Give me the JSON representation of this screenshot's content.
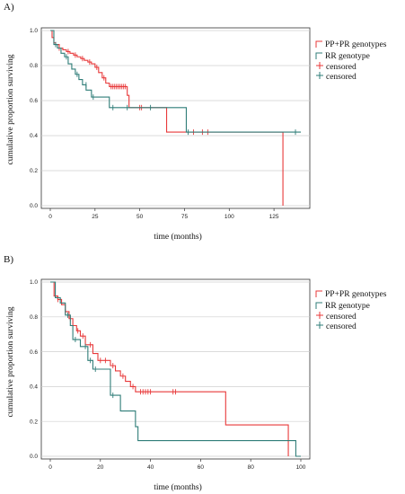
{
  "panels": [
    {
      "letter": "A)"
    },
    {
      "letter": "B)"
    }
  ],
  "chart_data": [
    {
      "type": "line",
      "subtype": "kaplan-meier",
      "xlabel": "time (months)",
      "ylabel": "cumulative proportion surviving",
      "xlim": [
        0,
        140
      ],
      "ylim": [
        0,
        1.0
      ],
      "xticks": [
        0,
        25,
        50,
        75,
        100,
        125
      ],
      "yticks": [
        0.0,
        0.2,
        0.4,
        0.6,
        0.8,
        1.0
      ],
      "grid": "horizontal",
      "legend_position": "top-right",
      "legend": [
        "PP+PR genotypes",
        "RR genotype",
        "censored",
        "censored"
      ],
      "series": [
        {
          "name": "PP+PR genotypes",
          "color": "#e8393a",
          "steps": [
            [
              0,
              1.0
            ],
            [
              1,
              0.96
            ],
            [
              2,
              0.93
            ],
            [
              3,
              0.92
            ],
            [
              5,
              0.9
            ],
            [
              7,
              0.89
            ],
            [
              9,
              0.88
            ],
            [
              11,
              0.87
            ],
            [
              13,
              0.86
            ],
            [
              15,
              0.85
            ],
            [
              17,
              0.84
            ],
            [
              19,
              0.83
            ],
            [
              21,
              0.82
            ],
            [
              23,
              0.81
            ],
            [
              25,
              0.79
            ],
            [
              27,
              0.76
            ],
            [
              29,
              0.73
            ],
            [
              31,
              0.7
            ],
            [
              33,
              0.68
            ],
            [
              43,
              0.63
            ],
            [
              44,
              0.56
            ],
            [
              65,
              0.42
            ],
            [
              130,
              0.0
            ]
          ],
          "end_x": 130,
          "censored": [
            [
              5,
              0.9
            ],
            [
              10,
              0.88
            ],
            [
              14,
              0.86
            ],
            [
              18,
              0.84
            ],
            [
              22,
              0.82
            ],
            [
              26,
              0.79
            ],
            [
              30,
              0.73
            ],
            [
              34,
              0.68
            ],
            [
              35,
              0.68
            ],
            [
              36,
              0.68
            ],
            [
              37,
              0.68
            ],
            [
              38,
              0.68
            ],
            [
              39,
              0.68
            ],
            [
              40,
              0.68
            ],
            [
              41,
              0.68
            ],
            [
              42,
              0.68
            ],
            [
              50,
              0.56
            ],
            [
              51,
              0.56
            ],
            [
              80,
              0.42
            ],
            [
              85,
              0.42
            ],
            [
              88,
              0.42
            ]
          ]
        },
        {
          "name": "RR genotype",
          "color": "#2f7d78",
          "steps": [
            [
              0,
              1.0
            ],
            [
              2,
              0.92
            ],
            [
              4,
              0.9
            ],
            [
              6,
              0.87
            ],
            [
              8,
              0.85
            ],
            [
              10,
              0.81
            ],
            [
              12,
              0.78
            ],
            [
              14,
              0.75
            ],
            [
              16,
              0.72
            ],
            [
              18,
              0.69
            ],
            [
              20,
              0.66
            ],
            [
              23,
              0.62
            ],
            [
              33,
              0.56
            ],
            [
              76,
              0.42
            ]
          ],
          "end_x": 140,
          "censored": [
            [
              3,
              0.92
            ],
            [
              9,
              0.85
            ],
            [
              15,
              0.75
            ],
            [
              20,
              0.69
            ],
            [
              24,
              0.62
            ],
            [
              35,
              0.56
            ],
            [
              43,
              0.56
            ],
            [
              56,
              0.56
            ],
            [
              77,
              0.42
            ],
            [
              137,
              0.42
            ]
          ]
        }
      ]
    },
    {
      "type": "line",
      "subtype": "kaplan-meier",
      "xlabel": "time (months)",
      "ylabel": "cumulative proportion surviving",
      "xlim": [
        0,
        100
      ],
      "ylim": [
        0,
        1.0
      ],
      "xticks": [
        0,
        20,
        40,
        60,
        80,
        100
      ],
      "yticks": [
        0.0,
        0.2,
        0.4,
        0.6,
        0.8,
        1.0
      ],
      "grid": "horizontal",
      "legend_position": "top-right",
      "legend": [
        "PP+PR genotypes",
        "RR genotype",
        "censored",
        "censored"
      ],
      "series": [
        {
          "name": "PP+PR genotypes",
          "color": "#e8393a",
          "steps": [
            [
              0,
              1.0
            ],
            [
              1.5,
              0.92
            ],
            [
              3,
              0.9
            ],
            [
              4.5,
              0.87
            ],
            [
              6,
              0.83
            ],
            [
              7.5,
              0.79
            ],
            [
              9,
              0.75
            ],
            [
              10.5,
              0.72
            ],
            [
              12,
              0.69
            ],
            [
              14,
              0.64
            ],
            [
              17,
              0.59
            ],
            [
              19,
              0.55
            ],
            [
              24,
              0.52
            ],
            [
              26,
              0.49
            ],
            [
              28,
              0.46
            ],
            [
              30,
              0.43
            ],
            [
              32,
              0.4
            ],
            [
              34,
              0.37
            ],
            [
              70,
              0.18
            ],
            [
              95,
              0.0
            ]
          ],
          "end_x": 95,
          "censored": [
            [
              3,
              0.9
            ],
            [
              6,
              0.83
            ],
            [
              8,
              0.79
            ],
            [
              11,
              0.72
            ],
            [
              13,
              0.69
            ],
            [
              16,
              0.64
            ],
            [
              20,
              0.55
            ],
            [
              22,
              0.55
            ],
            [
              25,
              0.52
            ],
            [
              29,
              0.46
            ],
            [
              33,
              0.4
            ],
            [
              36,
              0.37
            ],
            [
              37,
              0.37
            ],
            [
              38,
              0.37
            ],
            [
              39,
              0.37
            ],
            [
              40,
              0.37
            ],
            [
              49,
              0.37
            ],
            [
              50,
              0.37
            ]
          ]
        },
        {
          "name": "RR genotype",
          "color": "#2f7d78",
          "steps": [
            [
              0,
              1.0
            ],
            [
              2,
              0.91
            ],
            [
              4,
              0.88
            ],
            [
              6,
              0.81
            ],
            [
              8,
              0.75
            ],
            [
              9,
              0.67
            ],
            [
              12,
              0.63
            ],
            [
              15,
              0.55
            ],
            [
              17,
              0.5
            ],
            [
              24,
              0.35
            ],
            [
              28,
              0.26
            ],
            [
              34,
              0.17
            ],
            [
              35,
              0.09
            ],
            [
              98,
              0.0
            ]
          ],
          "end_x": 100,
          "censored": [
            [
              7,
              0.81
            ],
            [
              10,
              0.67
            ],
            [
              14,
              0.63
            ],
            [
              16,
              0.55
            ],
            [
              18,
              0.5
            ],
            [
              25,
              0.35
            ]
          ]
        }
      ]
    }
  ]
}
